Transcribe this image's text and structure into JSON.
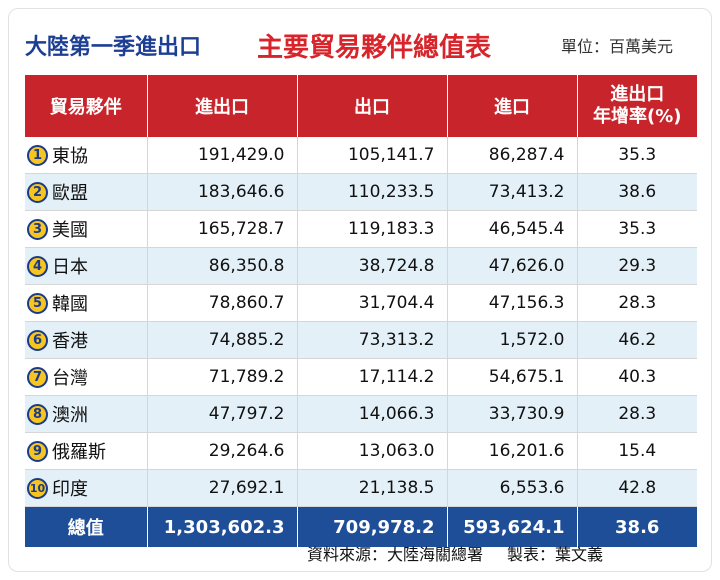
{
  "title": {
    "left": "大陸第一季進出口",
    "main": "主要貿易夥伴總值表",
    "unit": "單位：百萬美元"
  },
  "table": {
    "headers": [
      "貿易夥伴",
      "進出口",
      "出口",
      "進口",
      "進出口",
      "年增率(%)"
    ],
    "rows": [
      {
        "rank": "1",
        "name": "東協",
        "total": "191,429.0",
        "export": "105,141.7",
        "import": "86,287.4",
        "growth": "35.3"
      },
      {
        "rank": "2",
        "name": "歐盟",
        "total": "183,646.6",
        "export": "110,233.5",
        "import": "73,413.2",
        "growth": "38.6"
      },
      {
        "rank": "3",
        "name": "美國",
        "total": "165,728.7",
        "export": "119,183.3",
        "import": "46,545.4",
        "growth": "35.3"
      },
      {
        "rank": "4",
        "name": "日本",
        "total": "86,350.8",
        "export": "38,724.8",
        "import": "47,626.0",
        "growth": "29.3"
      },
      {
        "rank": "5",
        "name": "韓國",
        "total": "78,860.7",
        "export": "31,704.4",
        "import": "47,156.3",
        "growth": "28.3"
      },
      {
        "rank": "6",
        "name": "香港",
        "total": "74,885.2",
        "export": "73,313.2",
        "import": "1,572.0",
        "growth": "46.2"
      },
      {
        "rank": "7",
        "name": "台灣",
        "total": "71,789.2",
        "export": "17,114.2",
        "import": "54,675.1",
        "growth": "40.3"
      },
      {
        "rank": "8",
        "name": "澳洲",
        "total": "47,797.2",
        "export": "14,066.3",
        "import": "33,730.9",
        "growth": "28.3"
      },
      {
        "rank": "9",
        "name": "俄羅斯",
        "total": "29,264.6",
        "export": "13,063.0",
        "import": "16,201.6",
        "growth": "15.4"
      },
      {
        "rank": "10",
        "name": "印度",
        "total": "27,692.1",
        "export": "21,138.5",
        "import": "6,553.6",
        "growth": "42.8"
      }
    ],
    "totals": {
      "label": "總值",
      "total": "1,303,602.3",
      "export": "709,978.2",
      "import": "593,624.1",
      "growth": "38.6"
    }
  },
  "footer": {
    "source": "資料來源：大陸海關總署",
    "credit": "製表：葉文義"
  },
  "colors": {
    "header_red": "#c8242b",
    "title_blue": "#1c3f94",
    "title_red": "#d8242b",
    "stripe_blue": "#e3f0f8",
    "total_row_blue": "#1f4e99",
    "rank_badge_yellow": "#f6c51f"
  }
}
